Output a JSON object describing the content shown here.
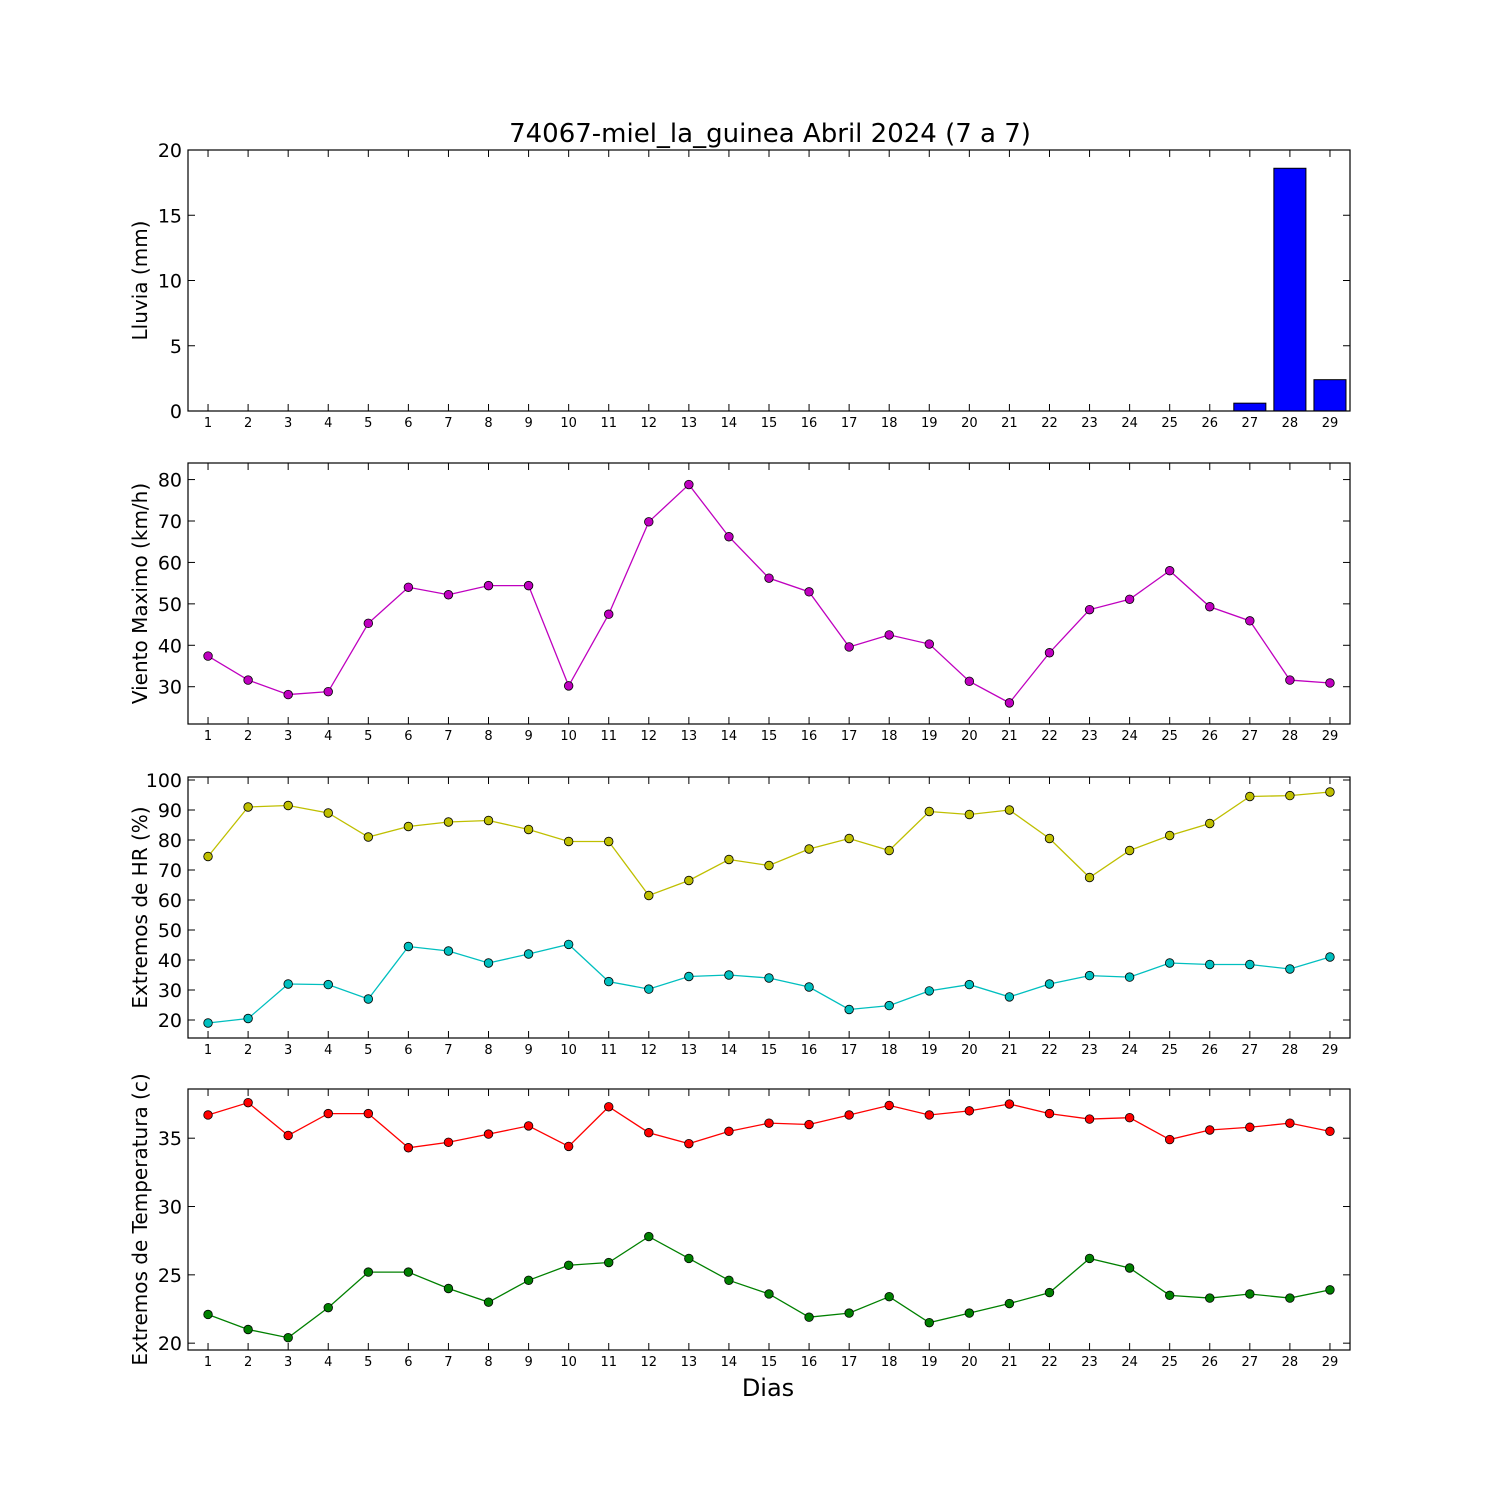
{
  "title": "74067-miel_la_guinea Abril 2024  (7 a 7)",
  "xlabel": "Dias",
  "chart_data": [
    {
      "type": "bar",
      "ylabel": "Lluvia (mm)",
      "ylim": [
        0,
        20
      ],
      "yticks": [
        0,
        5,
        10,
        15,
        20
      ],
      "color": "#0000ff",
      "x": [
        1,
        2,
        3,
        4,
        5,
        6,
        7,
        8,
        9,
        10,
        11,
        12,
        13,
        14,
        15,
        16,
        17,
        18,
        19,
        20,
        21,
        22,
        23,
        24,
        25,
        26,
        27,
        28,
        29
      ],
      "series": [
        {
          "values": [
            0,
            0,
            0,
            0,
            0,
            0,
            0,
            0,
            0,
            0,
            0,
            0,
            0,
            0,
            0,
            0,
            0,
            0,
            0,
            0,
            0,
            0,
            0,
            0,
            0,
            0,
            0.6,
            18.6,
            2.4
          ]
        }
      ]
    },
    {
      "type": "line",
      "ylabel": "Viento Maximo (km/h)",
      "ylim": [
        21,
        84
      ],
      "yticks": [
        30,
        40,
        50,
        60,
        70,
        80
      ],
      "x": [
        1,
        2,
        3,
        4,
        5,
        6,
        7,
        8,
        9,
        10,
        11,
        12,
        13,
        14,
        15,
        16,
        17,
        18,
        19,
        20,
        21,
        22,
        23,
        24,
        25,
        26,
        27,
        28,
        29
      ],
      "series": [
        {
          "color": "#bf00bf",
          "values": [
            37.4,
            31.6,
            28.1,
            28.8,
            45.3,
            54.0,
            52.2,
            54.4,
            54.4,
            30.2,
            47.5,
            69.8,
            78.8,
            66.2,
            56.2,
            52.9,
            39.6,
            42.5,
            40.3,
            31.3,
            26.1,
            38.2,
            48.6,
            51.1,
            58.0,
            49.3,
            45.9,
            31.6,
            30.9
          ]
        }
      ]
    },
    {
      "type": "line",
      "ylabel": "Extremos de HR (%)",
      "ylim": [
        14,
        101
      ],
      "yticks": [
        20,
        30,
        40,
        50,
        60,
        70,
        80,
        90,
        100
      ],
      "x": [
        1,
        2,
        3,
        4,
        5,
        6,
        7,
        8,
        9,
        10,
        11,
        12,
        13,
        14,
        15,
        16,
        17,
        18,
        19,
        20,
        21,
        22,
        23,
        24,
        25,
        26,
        27,
        28,
        29
      ],
      "series": [
        {
          "color": "#bfbf00",
          "values": [
            74.5,
            91.0,
            91.5,
            89.0,
            81.0,
            84.5,
            86.0,
            86.5,
            83.5,
            79.5,
            79.5,
            61.5,
            66.5,
            73.5,
            71.5,
            77.0,
            80.5,
            76.5,
            89.5,
            88.5,
            90.0,
            80.5,
            67.5,
            76.5,
            81.5,
            85.5,
            94.5,
            94.8,
            96.0
          ]
        },
        {
          "color": "#00bfbf",
          "values": [
            19.0,
            20.5,
            32.0,
            31.8,
            27.0,
            44.5,
            43.0,
            39.0,
            42.0,
            45.2,
            32.8,
            30.3,
            34.5,
            35.0,
            34.0,
            31.0,
            23.5,
            24.8,
            29.7,
            31.8,
            27.7,
            32.0,
            34.8,
            34.3,
            39.0,
            38.5,
            38.5,
            37.0,
            41.0
          ]
        }
      ]
    },
    {
      "type": "line",
      "ylabel": "Extremos de Temperatura (c)",
      "ylim": [
        19.5,
        38.6
      ],
      "yticks": [
        20,
        25,
        30,
        35
      ],
      "x": [
        1,
        2,
        3,
        4,
        5,
        6,
        7,
        8,
        9,
        10,
        11,
        12,
        13,
        14,
        15,
        16,
        17,
        18,
        19,
        20,
        21,
        22,
        23,
        24,
        25,
        26,
        27,
        28,
        29
      ],
      "series": [
        {
          "color": "#ff0000",
          "values": [
            36.7,
            37.6,
            35.2,
            36.8,
            36.8,
            34.3,
            34.7,
            35.3,
            35.9,
            34.4,
            37.3,
            35.4,
            34.6,
            35.5,
            36.1,
            36.0,
            36.7,
            37.4,
            36.7,
            37.0,
            37.5,
            36.8,
            36.4,
            36.5,
            34.9,
            35.6,
            35.8,
            36.1,
            35.5
          ]
        },
        {
          "color": "#008000",
          "values": [
            22.1,
            21.0,
            20.4,
            22.6,
            25.2,
            25.2,
            24.0,
            23.0,
            24.6,
            25.7,
            25.9,
            27.8,
            26.2,
            24.6,
            23.6,
            21.9,
            22.2,
            23.4,
            21.5,
            22.2,
            22.9,
            23.7,
            26.2,
            25.5,
            23.5,
            23.3,
            23.6,
            23.3,
            23.9
          ]
        }
      ]
    }
  ]
}
